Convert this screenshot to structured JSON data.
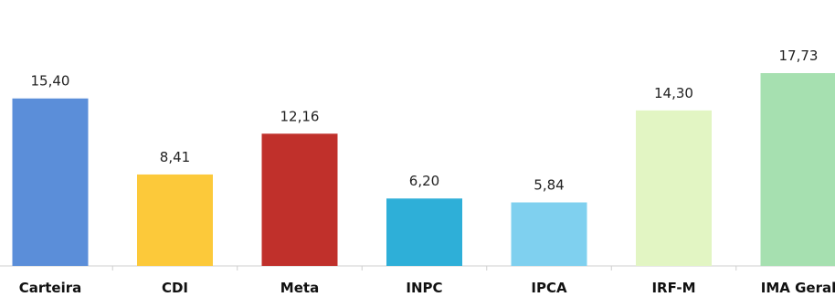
{
  "chart_data": {
    "type": "bar",
    "categories": [
      "Carteira",
      "CDI",
      "Meta",
      "INPC",
      "IPCA",
      "IRF-M",
      "IMA Geral"
    ],
    "values": [
      15.4,
      8.41,
      12.16,
      6.2,
      5.84,
      14.3,
      17.73
    ],
    "value_labels": [
      "15,40",
      "8,41",
      "12,16",
      "6,20",
      "5,84",
      "14,30",
      "17,73"
    ],
    "colors": [
      "#5b8ed9",
      "#fcc93a",
      "#c0302b",
      "#2eafd8",
      "#7fd0ef",
      "#e2f5c3",
      "#a6e0b0"
    ],
    "grid": false,
    "legend": "none"
  }
}
